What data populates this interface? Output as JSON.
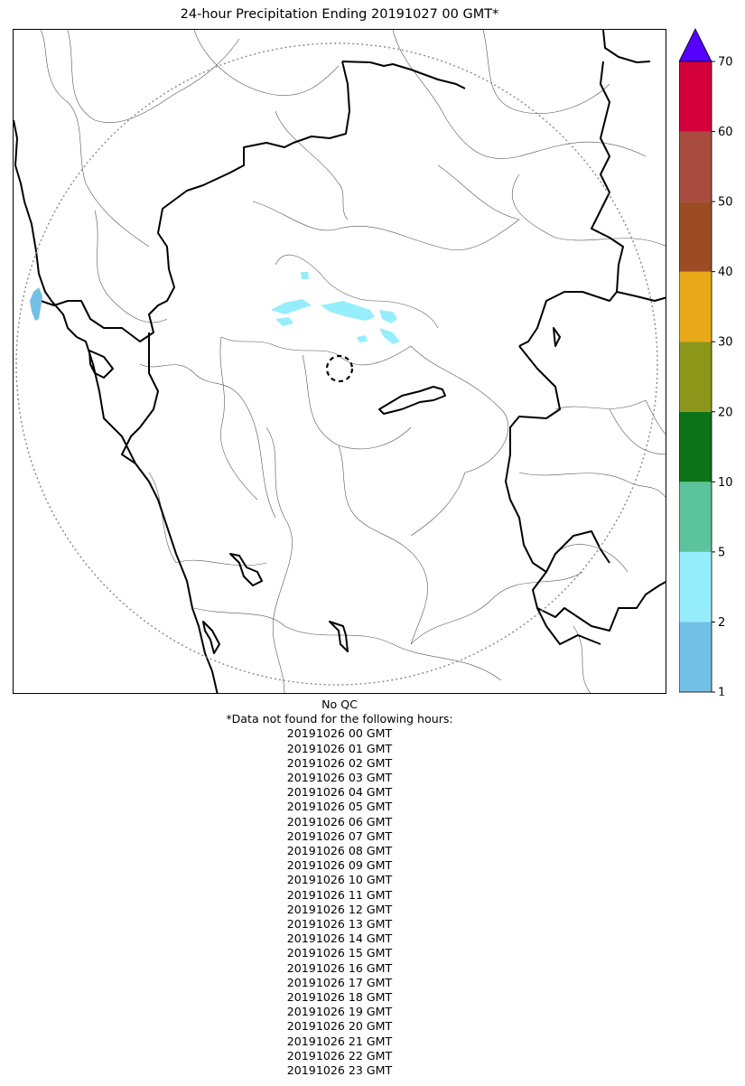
{
  "title": "24-hour Precipitation Ending 20191027 00 GMT*",
  "qc_note": "No QC",
  "missing_header": "*Data not found for the following hours:",
  "missing_hours": [
    "20191026 00 GMT",
    "20191026 01 GMT",
    "20191026 02 GMT",
    "20191026 03 GMT",
    "20191026 04 GMT",
    "20191026 05 GMT",
    "20191026 06 GMT",
    "20191026 07 GMT",
    "20191026 08 GMT",
    "20191026 09 GMT",
    "20191026 10 GMT",
    "20191026 11 GMT",
    "20191026 12 GMT",
    "20191026 13 GMT",
    "20191026 14 GMT",
    "20191026 15 GMT",
    "20191026 16 GMT",
    "20191026 17 GMT",
    "20191026 18 GMT",
    "20191026 19 GMT",
    "20191026 20 GMT",
    "20191026 21 GMT",
    "20191026 22 GMT",
    "20191026 23 GMT"
  ],
  "colorbar": {
    "ticks": [
      "1",
      "2",
      "5",
      "10",
      "20",
      "30",
      "40",
      "50",
      "60",
      "70"
    ],
    "colors": [
      "#74bfe5",
      "#96eefc",
      "#5cc49c",
      "#0c7318",
      "#8c9618",
      "#e8aa18",
      "#9c4c24",
      "#a84c40",
      "#d4003c"
    ],
    "extend_color": "#5500ff"
  },
  "colors": {
    "precip_light": "#74bfe5",
    "precip_cyan": "#96eefc",
    "state_border": "#000000",
    "district_border": "#444444",
    "range_ring": "#888888"
  }
}
